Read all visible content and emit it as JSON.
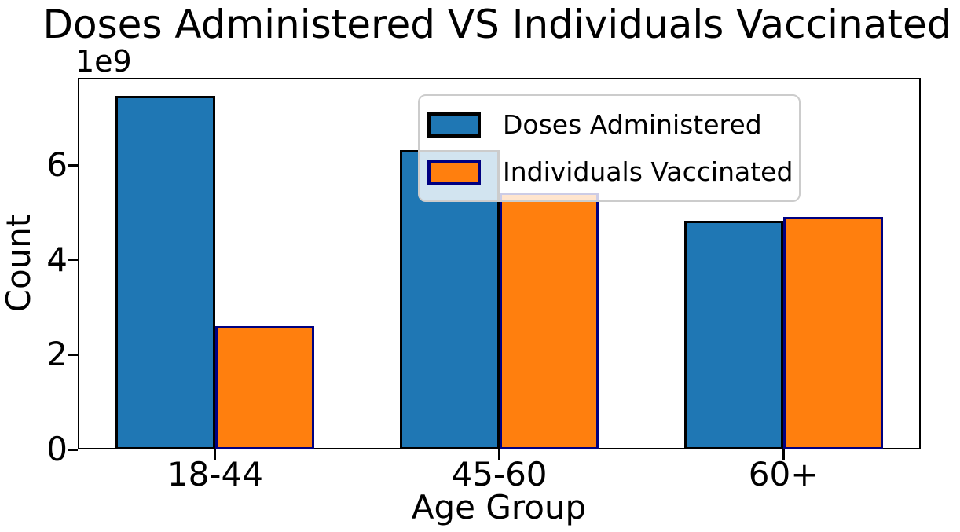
{
  "chart_data": {
    "type": "bar",
    "title": "Doses Administered VS Individuals Vaccinated",
    "xlabel": "Age Group",
    "ylabel": "Count",
    "offset_text": "1e9",
    "categories": [
      "18-44",
      "45-60",
      "60+"
    ],
    "series": [
      {
        "name": "Doses Administered",
        "color": "#1f77b4",
        "edge_color": "#000000",
        "values": [
          7470000000,
          6320000000,
          4830000000
        ]
      },
      {
        "name": "Individuals Vaccinated",
        "color": "#ff7f0e",
        "edge_color": "#000080",
        "values": [
          2610000000,
          5430000000,
          4910000000
        ]
      }
    ],
    "ylim": [
      0,
      7850000000
    ],
    "yticks": [
      0,
      2000000000,
      4000000000,
      6000000000
    ],
    "ytick_labels": [
      "0",
      "2",
      "4",
      "6"
    ],
    "grid": false,
    "legend_position": "upper right",
    "background_color": "#ffffff"
  }
}
